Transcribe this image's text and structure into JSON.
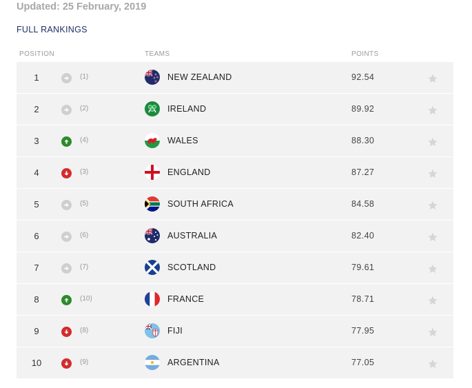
{
  "updated": "Updated: 25 February, 2019",
  "section_title": "FULL RANKINGS",
  "headers": {
    "position": "POSITION",
    "teams": "TEAMS",
    "points": "POINTS"
  },
  "colors": {
    "up": "#2d8a2d",
    "down": "#d22c2c",
    "same": "#cfcfcf",
    "title": "#1f2f64",
    "row_bg": "#f2f2f2",
    "star": "#d6d6d6"
  },
  "rows": [
    {
      "position": "1",
      "movement": "same",
      "previous": "(1)",
      "team": "NEW ZEALAND",
      "flag": "new-zealand-flag-icon",
      "points": "92.54"
    },
    {
      "position": "2",
      "movement": "same",
      "previous": "(2)",
      "team": "IRELAND",
      "flag": "ireland-flag-icon",
      "points": "89.92"
    },
    {
      "position": "3",
      "movement": "up",
      "previous": "(4)",
      "team": "WALES",
      "flag": "wales-flag-icon",
      "points": "88.30"
    },
    {
      "position": "4",
      "movement": "down",
      "previous": "(3)",
      "team": "ENGLAND",
      "flag": "england-flag-icon",
      "points": "87.27"
    },
    {
      "position": "5",
      "movement": "same",
      "previous": "(5)",
      "team": "SOUTH AFRICA",
      "flag": "south-africa-flag-icon",
      "points": "84.58"
    },
    {
      "position": "6",
      "movement": "same",
      "previous": "(6)",
      "team": "AUSTRALIA",
      "flag": "australia-flag-icon",
      "points": "82.40"
    },
    {
      "position": "7",
      "movement": "same",
      "previous": "(7)",
      "team": "SCOTLAND",
      "flag": "scotland-flag-icon",
      "points": "79.61"
    },
    {
      "position": "8",
      "movement": "up",
      "previous": "(10)",
      "team": "FRANCE",
      "flag": "france-flag-icon",
      "points": "78.71"
    },
    {
      "position": "9",
      "movement": "down",
      "previous": "(8)",
      "team": "FIJI",
      "flag": "fiji-flag-icon",
      "points": "77.95"
    },
    {
      "position": "10",
      "movement": "down",
      "previous": "(9)",
      "team": "ARGENTINA",
      "flag": "argentina-flag-icon",
      "points": "77.05"
    }
  ]
}
